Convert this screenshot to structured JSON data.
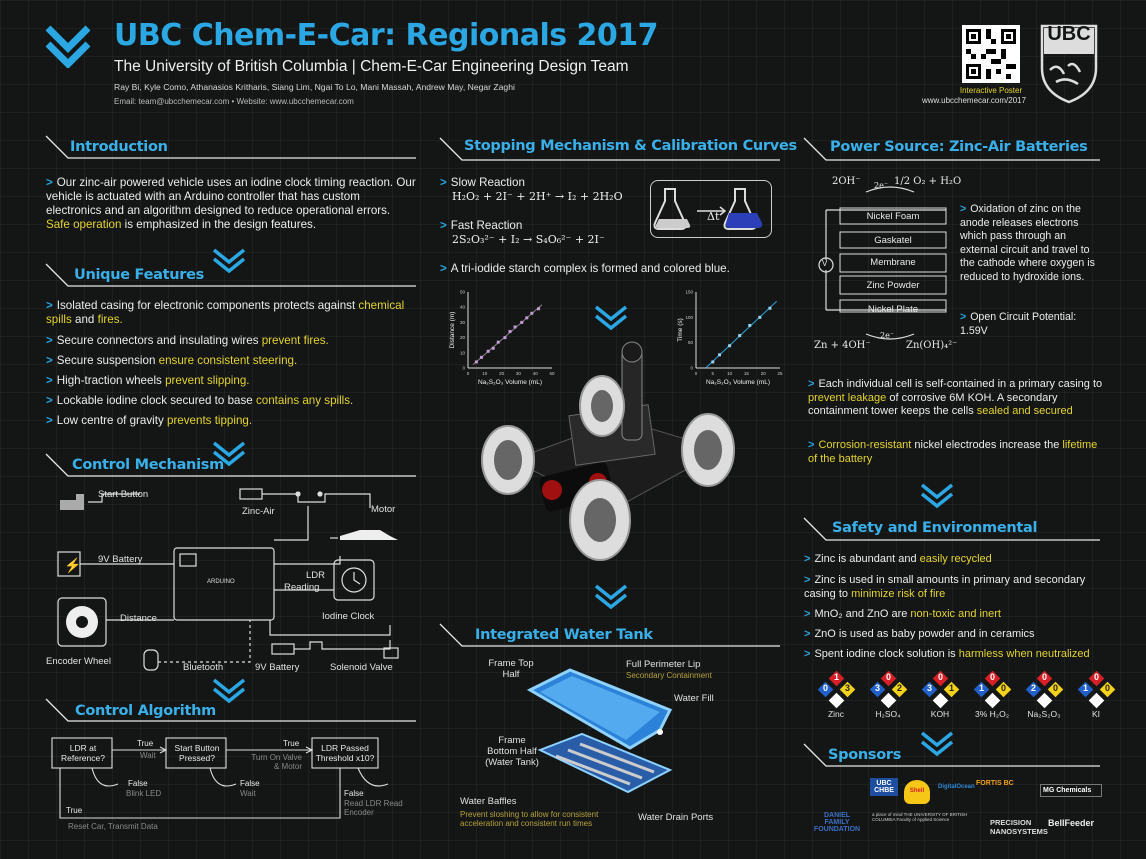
{
  "header": {
    "title": "UBC Chem-E-Car: Regionals 2017",
    "subtitle": "The University of British Columbia | Chem-E-Car Engineering Design Team",
    "authors": "Ray Bi, Kyle Como, Athanasios Kritharis, Siang Lim, Ngai To Lo, Mani Massah, Andrew May, Negar Zaghi",
    "contact": "Email: team@ubcchemecar.com  •  Website: www.ubcchemecar.com",
    "qr_caption": "Interactive Poster",
    "qr_url": "www.ubcchemecar.com/2017",
    "logo_text": "UBC"
  },
  "intro": {
    "title": "Introduction",
    "text_a": "Our zinc-air powered vehicle uses an iodine clock timing reaction. Our vehicle is actuated with an Arduino controller that has custom electronics and an algorithm designed to reduce operational errors.",
    "text_highlight": "Safe operation",
    "text_b": "is emphasized in the design features."
  },
  "features": {
    "title": "Unique Features",
    "items": [
      {
        "text": "Isolated casing for electronic components protects against",
        "hl": "chemical spills",
        "mid": "and",
        "hl2": "fires."
      },
      {
        "text": "Secure connectors and insulating wires",
        "hl": "prevent fires."
      },
      {
        "text": "Secure suspension",
        "hl": "ensure consistent steering."
      },
      {
        "text": "High-traction wheels",
        "hl": "prevent slipping."
      },
      {
        "text": "Lockable iodine clock secured to base",
        "hl": "contains any spills."
      },
      {
        "text": "Low centre of gravity",
        "hl": "prevents tipping."
      }
    ]
  },
  "control_mech": {
    "title": "Control Mechanism",
    "labels": {
      "start_button": "Start Button",
      "zinc_air": "Zinc-Air",
      "motor": "Motor",
      "battery1": "9V Battery",
      "ldr": "LDR",
      "reading": "Reading",
      "distance": "Distance",
      "iodine_clock": "Iodine Clock",
      "encoder": "Encoder Wheel",
      "bluetooth": "Bluetooth",
      "battery2": "9V Battery",
      "solenoid": "Solenoid Valve",
      "arduino": "ARDUINO"
    }
  },
  "algorithm": {
    "title": "Control Algorithm",
    "boxes": [
      "LDR at Reference?",
      "Start Button Pressed?",
      "LDR Passed Threshold x10?"
    ],
    "true1": "True",
    "wait1": "Wait",
    "true2": "True",
    "action2": "Turn On Valve & Motor",
    "false1": "False",
    "blink": "Blink LED",
    "false2": "False",
    "wait2": "Wait",
    "false3": "False",
    "read": "Read LDR Read Encoder",
    "true3": "True",
    "reset": "Reset Car, Transmit Data"
  },
  "stopping": {
    "title": "Stopping Mechanism & Calibration Curves",
    "slow_label": "Slow Reaction",
    "slow_eq": "H₂O₂ + 2I⁻ + 2H⁺ → I₂ + 2H₂O",
    "fast_label": "Fast Reaction",
    "fast_eq": "2S₂O₃²⁻ + I₂ → S₄O₆²⁻ + 2I⁻",
    "delta": "Δt",
    "complex": "A tri-iodide starch complex is formed and colored blue."
  },
  "chart_data": [
    {
      "type": "scatter",
      "xlabel": "Na₂S₂O₃ Volume (mL)",
      "ylabel": "Distance (m)",
      "xlim": [
        0,
        50
      ],
      "ylim": [
        0,
        50
      ],
      "xticks": [
        0,
        10,
        20,
        30,
        40,
        50
      ],
      "yticks": [
        0,
        10,
        20,
        30,
        40,
        50
      ],
      "x": [
        5,
        8,
        12,
        15,
        18,
        22,
        25,
        28,
        32,
        35,
        38,
        42
      ],
      "y": [
        4,
        7,
        11,
        13,
        17,
        20,
        24,
        27,
        30,
        33,
        36,
        39
      ]
    },
    {
      "type": "scatter",
      "xlabel": "Na₂S₂O₃ Volume (mL)",
      "ylabel": "Time (s)",
      "xlim": [
        0,
        25
      ],
      "ylim": [
        0,
        150
      ],
      "xticks": [
        0,
        5,
        10,
        15,
        20,
        25
      ],
      "yticks": [
        0,
        50,
        100,
        150
      ],
      "x": [
        5,
        7,
        10,
        13,
        16,
        19,
        22
      ],
      "y": [
        12,
        26,
        44,
        64,
        84,
        100,
        118
      ]
    }
  ],
  "water_tank": {
    "title": "Integrated Water Tank",
    "frame_top": "Frame Top Half",
    "lip": "Full Perimeter Lip",
    "lip_sub": "Secondary Containment",
    "fill": "Water Fill",
    "frame_bottom": "Frame Bottom Half (Water Tank)",
    "baffles": "Water Baffles",
    "baffles_sub": "Prevent sloshing to allow for consistent acceleration and consistent run times",
    "drain": "Water Drain Ports"
  },
  "power": {
    "title": "Power Source: Zinc-Air Batteries",
    "top_eq_left": "2OH⁻",
    "top_eq_mid": "2e⁻",
    "top_eq_right": "1/2 O₂ + H₂O",
    "layers": [
      "Nickel Foam",
      "Gaskatel",
      "Membrane",
      "Zinc Powder",
      "Nickel Plate"
    ],
    "bottom_eq_left": "Zn + 4OH⁻",
    "bottom_eq_mid": "2e⁻",
    "bottom_eq_right": "Zn(OH)₄²⁻",
    "volt": "V",
    "side_text": "Oxidation of zinc on the anode releases electrons which pass through an external circuit and travel to the cathode where oxygen is reduced to hydroxide ions.",
    "ocp": "Open Circuit Potential: 1.59V",
    "b1_a": "Each individual cell is self-contained in a primary casing to",
    "b1_hl": "prevent leakage",
    "b1_b": "of corrosive 6M KOH. A secondary containment tower keeps the cells",
    "b1_hl2": "sealed and secured",
    "b2_hl": "Corrosion-resistant",
    "b2_a": "nickel electrodes increase the",
    "b2_hl2": "lifetime of the battery"
  },
  "safety": {
    "title": "Safety and Environmental",
    "items": [
      {
        "text": "Zinc is abundant and",
        "hl": "easily recycled"
      },
      {
        "text": "Zinc is used in small amounts in primary and secondary casing to",
        "hl": "minimize risk of fire"
      },
      {
        "text": "MnO₂ and ZnO are",
        "hl": "non-toxic and inert"
      },
      {
        "text": "ZnO is used as baby powder and in ceramics",
        "hl": ""
      },
      {
        "text": "Spent iodine clock solution is",
        "hl": "harmless when neutralized"
      }
    ],
    "diamonds": [
      {
        "name": "Zinc",
        "h": "0",
        "f": "1",
        "r": "3"
      },
      {
        "name": "H₂SO₄",
        "h": "3",
        "f": "0",
        "r": "2"
      },
      {
        "name": "KOH",
        "h": "3",
        "f": "0",
        "r": "1"
      },
      {
        "name": "3% H₂O₂",
        "h": "1",
        "f": "0",
        "r": "0"
      },
      {
        "name": "Na₂S₂O₃",
        "h": "2",
        "f": "0",
        "r": "0"
      },
      {
        "name": "KI",
        "h": "1",
        "f": "0",
        "r": "0"
      }
    ]
  },
  "sponsors": {
    "title": "Sponsors",
    "names": [
      "DANIEL FAMILY FOUNDATION",
      "UBC CHBE",
      "Shell",
      "DigitalOcean",
      "FORTIS BC",
      "MG Chemicals",
      "a place of mind THE UNIVERSITY OF BRITISH COLUMBIA Faculty of Applied Science",
      "PRECISION NANOSYSTEMS",
      "BellFeeder"
    ]
  },
  "colors": {
    "accent": "#2ba7e4",
    "highlight": "#e3d430",
    "background": "#141616"
  }
}
